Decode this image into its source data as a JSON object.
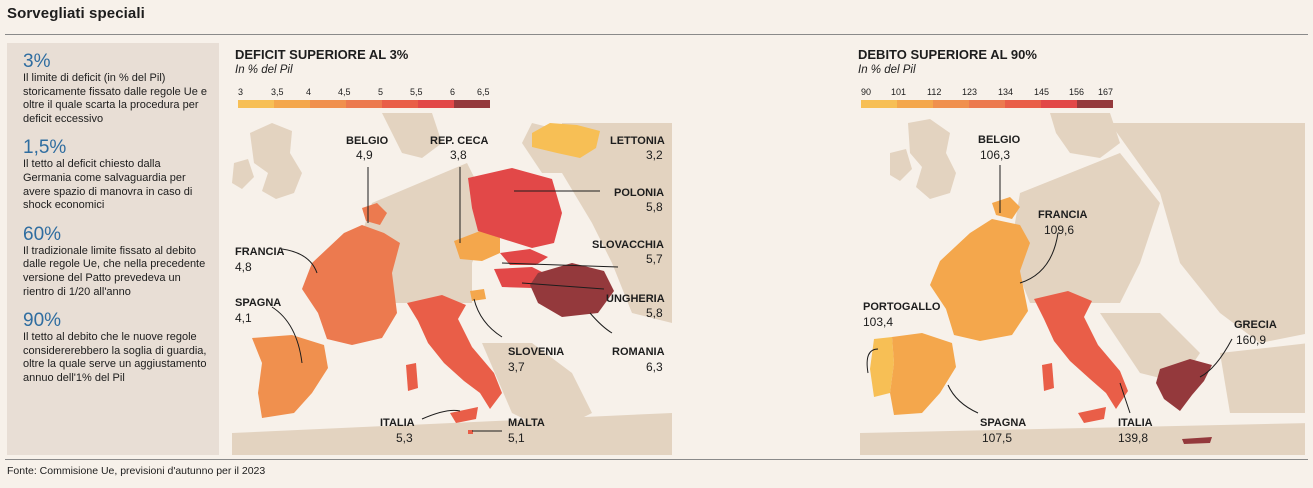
{
  "header": {
    "title": "Sorvegliati speciali"
  },
  "source": "Fonte: Commisione Ue, previsioni d'autunno per il 2023",
  "sidebar": {
    "notes": [
      {
        "num": "3%",
        "text": "Il limite di deficit (in % del Pil) storicamente fissato dalle regole Ue e oltre il quale scarta la procedura per deficit eccessivo"
      },
      {
        "num": "1,5%",
        "text": "Il tetto al deficit chiesto dalla Germania come salvaguardia per avere spazio di manovra in caso di shock economici"
      },
      {
        "num": "60%",
        "text": "Il tradizionale limite fissato al debito dalle regole Ue, che nella precedente versione del Patto prevedeva un rientro di 1/20 all'anno"
      },
      {
        "num": "90%",
        "text": "Il tetto al debito che le nuove regole considererebbero la soglia di guardia, oltre la quale serve un aggiustamento annuo dell'1% del Pil"
      }
    ]
  },
  "colors": {
    "land": "#e3d3c0",
    "sea": "#f7f1ea",
    "deficit_scale": [
      "#f7bf55",
      "#f4a74c",
      "#f0904e",
      "#ec7a4f",
      "#e95e48",
      "#e24848",
      "#94393c"
    ],
    "debt_scale": [
      "#f7bf55",
      "#f4a74c",
      "#f0904e",
      "#ec7a4f",
      "#e95e48",
      "#e24848",
      "#94393c"
    ]
  },
  "deficit_map": {
    "title": "DEFICIT SUPERIORE AL 3%",
    "subtitle": "In % del Pil",
    "scale_labels": [
      "3",
      "3,5",
      "4",
      "4,5",
      "5",
      "5,5",
      "6",
      "6,5"
    ],
    "countries": [
      {
        "name": "BELGIO",
        "value": "4,9",
        "color": "#ec7a4f"
      },
      {
        "name": "REP. CECA",
        "value": "3,8",
        "color": "#f4a74c"
      },
      {
        "name": "LETTONIA",
        "value": "3,2",
        "color": "#f7bf55"
      },
      {
        "name": "POLONIA",
        "value": "5,8",
        "color": "#e24848"
      },
      {
        "name": "FRANCIA",
        "value": "4,8",
        "color": "#ec7a4f"
      },
      {
        "name": "SLOVACCHIA",
        "value": "5,7",
        "color": "#e24848"
      },
      {
        "name": "SPAGNA",
        "value": "4,1",
        "color": "#f0904e"
      },
      {
        "name": "UNGHERIA",
        "value": "5,8",
        "color": "#e24848"
      },
      {
        "name": "SLOVENIA",
        "value": "3,7",
        "color": "#f4a74c"
      },
      {
        "name": "ROMANIA",
        "value": "6,3",
        "color": "#94393c"
      },
      {
        "name": "ITALIA",
        "value": "5,3",
        "color": "#e95e48"
      },
      {
        "name": "MALTA",
        "value": "5,1",
        "color": "#e95e48"
      }
    ]
  },
  "debt_map": {
    "title": "DEBITO SUPERIORE AL 90%",
    "subtitle": "In % del Pil",
    "scale_labels": [
      "90",
      "101",
      "112",
      "123",
      "134",
      "145",
      "156",
      "167"
    ],
    "countries": [
      {
        "name": "BELGIO",
        "value": "106,3",
        "color": "#f4a74c"
      },
      {
        "name": "FRANCIA",
        "value": "109,6",
        "color": "#f4a74c"
      },
      {
        "name": "PORTOGALLO",
        "value": "103,4",
        "color": "#f4a74c"
      },
      {
        "name": "GRECIA",
        "value": "160,9",
        "color": "#94393c"
      },
      {
        "name": "SPAGNA",
        "value": "107,5",
        "color": "#f4a74c"
      },
      {
        "name": "ITALIA",
        "value": "139,8",
        "color": "#e95e48"
      }
    ]
  }
}
